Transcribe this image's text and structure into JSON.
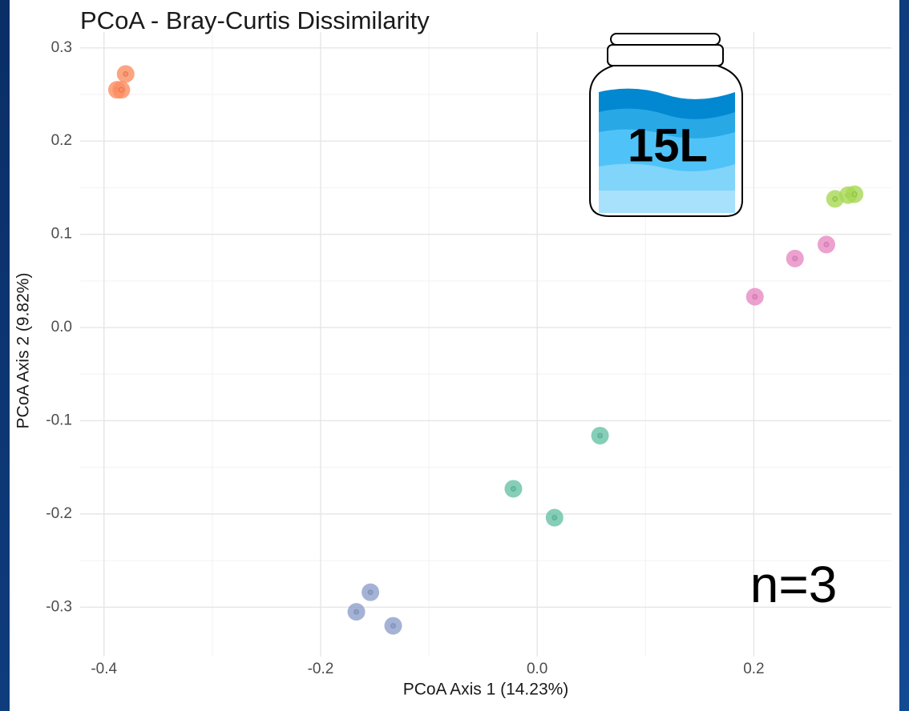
{
  "chart_data": {
    "type": "scatter",
    "title": "PCoA - Bray-Curtis Dissimilarity",
    "x_label": "PCoA Axis 1 (14.23%)",
    "y_label": "PCoA Axis 2 (9.82%)",
    "annotations": [
      "15L",
      "n=3"
    ],
    "xlim": [
      -0.422,
      0.327
    ],
    "ylim": [
      -0.353,
      0.317
    ],
    "xticks": [
      -0.4,
      -0.2,
      {
        "value": 0,
        "label": "0.0"
      },
      0.2
    ],
    "yticks": [
      -0.3,
      -0.2,
      -0.1,
      {
        "value": 0,
        "label": "0.0"
      },
      0.1,
      0.2,
      0.3
    ],
    "grid": true,
    "series": [
      {
        "color": "#fc8d62",
        "x": [
          -0.38,
          -0.388,
          -0.384
        ],
        "values": [
          0.272,
          0.255,
          0.255
        ]
      },
      {
        "color": "#a6d854",
        "x": [
          0.275,
          0.287,
          0.293
        ],
        "values": [
          0.138,
          0.142,
          0.143
        ]
      },
      {
        "color": "#e78ac3",
        "x": [
          0.267,
          0.238,
          0.201
        ],
        "values": [
          0.089,
          0.074,
          0.033
        ]
      },
      {
        "color": "#66c2a5",
        "x": [
          0.058,
          -0.022,
          0.016
        ],
        "values": [
          -0.116,
          -0.173,
          -0.204
        ]
      },
      {
        "color": "#8da0cb",
        "x": [
          -0.154,
          -0.167,
          -0.133
        ],
        "values": [
          -0.284,
          -0.305,
          -0.32
        ]
      }
    ]
  }
}
